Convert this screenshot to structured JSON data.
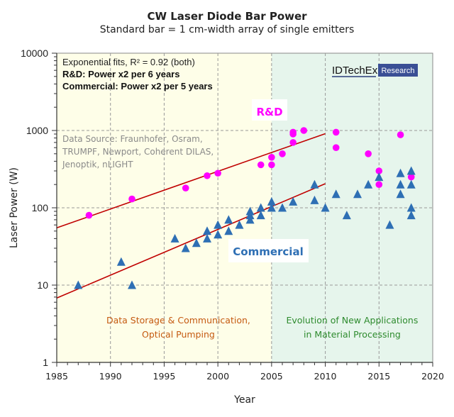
{
  "chart_data": {
    "type": "scatter",
    "title": "CW Laser Diode Bar Power",
    "subtitle": "Standard bar = 1 cm-width array of single emitters",
    "xlabel": "Year",
    "ylabel": "Laser Power (W)",
    "xlim": [
      1985,
      2020
    ],
    "ylim": [
      1,
      10000
    ],
    "yscale": "log",
    "grid": true,
    "x_ticks": [
      "1985",
      "1990",
      "1995",
      "2000",
      "2005",
      "2010",
      "2015",
      "2020"
    ],
    "y_ticks": [
      "1",
      "10",
      "100",
      "1000",
      "10000"
    ],
    "regions": [
      {
        "label_lines": [
          "Data Storage & Communication,",
          "Optical Pumping"
        ],
        "from": 1985,
        "to": 2005,
        "color": "#fefee8",
        "text_color": "#c55a11"
      },
      {
        "label_lines": [
          "Evolution of New Applications",
          "in Material Processing"
        ],
        "from": 2005,
        "to": 2020,
        "color": "#e6f5ec",
        "text_color": "#2e8b2e"
      }
    ],
    "annotations": {
      "fit_note": "Exponential fits, R² = 0.92 (both)",
      "rd_note": "R&D: Power x2 per 6 years",
      "commercial_note": "Commercial:  Power x2 per 5 years",
      "source_lines": [
        "Data Source:  Fraunhofer,  Osram,",
        "TRUMPF, Newport,  Coherent DILAS,",
        "Jenoptik, nLIGHT"
      ],
      "rd_label": "R&D",
      "commercial_label": "Commercial",
      "logo_text": "IDTechEx",
      "logo_badge": "Research"
    },
    "series": [
      {
        "name": "R&D",
        "marker": "circle",
        "color": "#ff00ff",
        "points": [
          [
            1988,
            80
          ],
          [
            1992,
            130
          ],
          [
            1997,
            180
          ],
          [
            1999,
            260
          ],
          [
            2000,
            280
          ],
          [
            2004,
            360
          ],
          [
            2005,
            360
          ],
          [
            2005,
            450
          ],
          [
            2006,
            500
          ],
          [
            2007,
            700
          ],
          [
            2007,
            900
          ],
          [
            2007,
            950
          ],
          [
            2008,
            1000
          ],
          [
            2011,
            950
          ],
          [
            2011,
            600
          ],
          [
            2014,
            500
          ],
          [
            2015,
            300
          ],
          [
            2015,
            200
          ],
          [
            2017,
            880
          ],
          [
            2018,
            250
          ]
        ]
      },
      {
        "name": "Commercial",
        "marker": "triangle",
        "color": "#2e6fb4",
        "points": [
          [
            1987,
            10
          ],
          [
            1991,
            20
          ],
          [
            1992,
            10
          ],
          [
            1996,
            40
          ],
          [
            1997,
            30
          ],
          [
            1998,
            35
          ],
          [
            1999,
            40
          ],
          [
            1999,
            50
          ],
          [
            2000,
            60
          ],
          [
            2000,
            45
          ],
          [
            2001,
            70
          ],
          [
            2001,
            50
          ],
          [
            2002,
            60
          ],
          [
            2003,
            90
          ],
          [
            2003,
            80
          ],
          [
            2003,
            70
          ],
          [
            2004,
            100
          ],
          [
            2004,
            80
          ],
          [
            2005,
            120
          ],
          [
            2005,
            100
          ],
          [
            2006,
            100
          ],
          [
            2007,
            120
          ],
          [
            2009,
            200
          ],
          [
            2009,
            125
          ],
          [
            2010,
            100
          ],
          [
            2011,
            150
          ],
          [
            2012,
            80
          ],
          [
            2013,
            150
          ],
          [
            2014,
            200
          ],
          [
            2015,
            250
          ],
          [
            2016,
            60
          ],
          [
            2017,
            280
          ],
          [
            2017,
            200
          ],
          [
            2017,
            150
          ],
          [
            2018,
            300
          ],
          [
            2018,
            200
          ],
          [
            2018,
            100
          ],
          [
            2018,
            80
          ]
        ]
      }
    ],
    "fits": [
      {
        "name": "R&D fit",
        "color": "#c00000",
        "from": [
          1985,
          55
        ],
        "to": [
          2010,
          910
        ]
      },
      {
        "name": "Commercial fit",
        "color": "#c00000",
        "from": [
          1985,
          6.8
        ],
        "to": [
          2010,
          205
        ]
      }
    ]
  }
}
